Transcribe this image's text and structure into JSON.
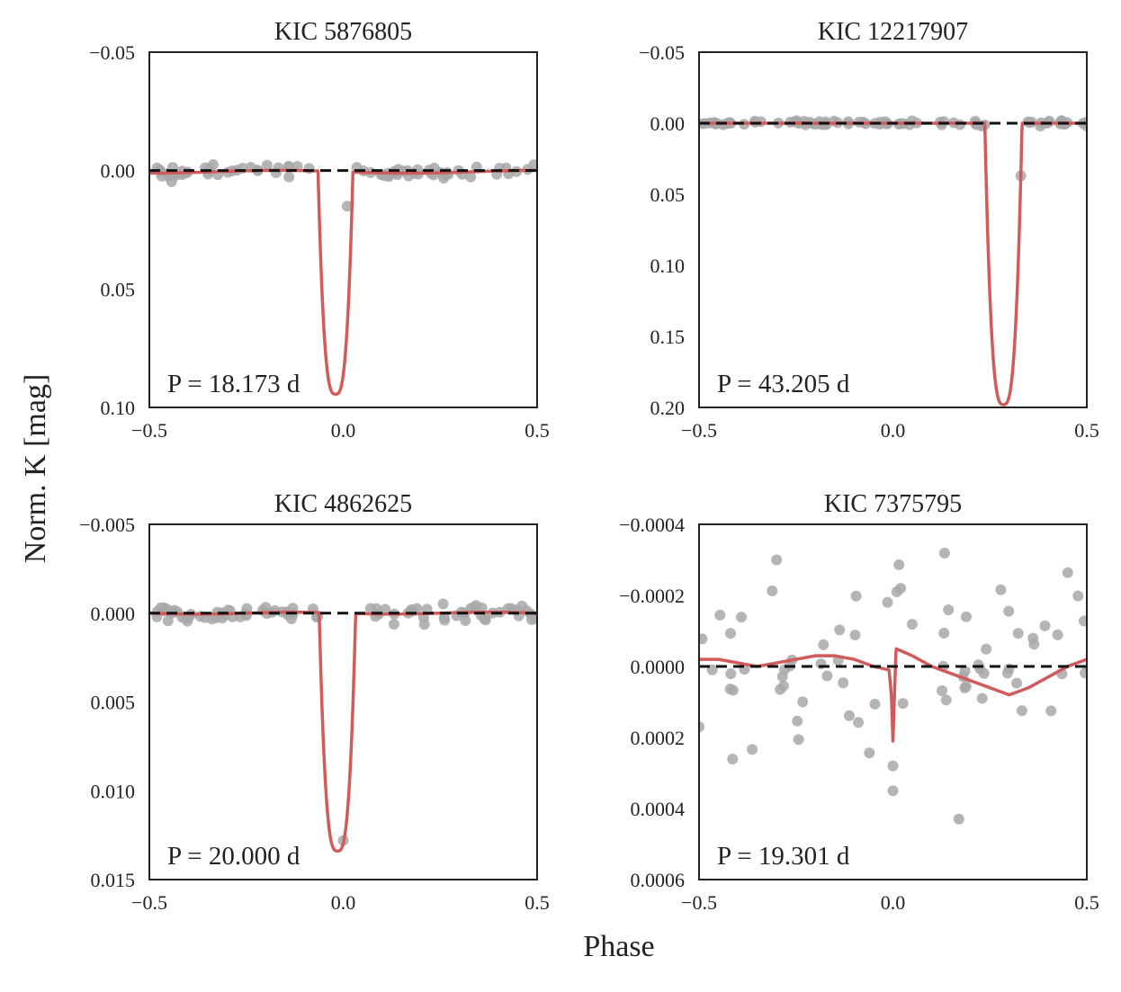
{
  "figure": {
    "xlabel": "Phase",
    "ylabel": "Norm. K [mag]"
  },
  "colors": {
    "points": "#a8a8a8",
    "model": "#d15b5b",
    "baseline": "#111111",
    "axes": "#222222",
    "text": "#222222"
  },
  "chart_data": [
    {
      "type": "scatter",
      "title": "KIC 5876805",
      "annotation": "P = 18.173 d",
      "xlim": [
        -0.5,
        0.5
      ],
      "ylim": [
        -0.05,
        0.1
      ],
      "y_inverted": true,
      "xticks": [
        -0.5,
        0.0,
        0.5
      ],
      "xtick_labels": [
        "−0.5",
        "0.0",
        "0.5"
      ],
      "yticks": [
        -0.05,
        0.0,
        0.05,
        0.1
      ],
      "ytick_labels": [
        "−0.05",
        "0.00",
        "0.05",
        "0.10"
      ],
      "baseline": 0,
      "model": {
        "transits": [
          {
            "center": -0.02,
            "depth": 0.094,
            "half_width": 0.045,
            "sharpness": 3
          }
        ],
        "offset": 0.0005,
        "wave_amp": 0.0006,
        "wave_freq": 1.5
      },
      "noise": 0.0012,
      "n_points": 80,
      "outliers": [
        [
          0.01,
          0.015
        ]
      ],
      "seed": 11
    },
    {
      "type": "scatter",
      "title": "KIC 12217907",
      "annotation": "P = 43.205 d",
      "xlim": [
        -0.5,
        0.5
      ],
      "ylim": [
        -0.05,
        0.2
      ],
      "y_inverted": true,
      "xticks": [
        -0.5,
        0.0,
        0.5
      ],
      "xtick_labels": [
        "−0.5",
        "0.0",
        "0.5"
      ],
      "yticks": [
        -0.05,
        0.0,
        0.05,
        0.1,
        0.15,
        0.2
      ],
      "ytick_labels": [
        "−0.05",
        "0.00",
        "0.05",
        "0.10",
        "0.15",
        "0.20"
      ],
      "baseline": 0,
      "model": {
        "transits": [
          {
            "center": 0.285,
            "depth": 0.198,
            "half_width": 0.048,
            "sharpness": 3
          }
        ],
        "offset": 0.0,
        "wave_amp": 0.0,
        "wave_freq": 1
      },
      "noise": 0.0008,
      "n_points": 85,
      "outliers": [
        [
          0.33,
          0.037
        ]
      ],
      "exclude_window": [
        0.24,
        0.33
      ],
      "seed": 23
    },
    {
      "type": "scatter",
      "title": "KIC 4862625",
      "annotation": "P = 20.000 d",
      "xlim": [
        -0.5,
        0.5
      ],
      "ylim": [
        -0.005,
        0.015
      ],
      "y_inverted": true,
      "xticks": [
        -0.5,
        0.0,
        0.5
      ],
      "xtick_labels": [
        "−0.5",
        "0.0",
        "0.5"
      ],
      "yticks": [
        -0.005,
        0.0,
        0.005,
        0.01,
        0.015
      ],
      "ytick_labels": [
        "−0.005",
        "0.000",
        "0.005",
        "0.010",
        "0.015"
      ],
      "baseline": 0,
      "model": {
        "transits": [
          {
            "center": -0.015,
            "depth": 0.0134,
            "half_width": 0.047,
            "sharpness": 3
          }
        ],
        "offset": 0.0,
        "wave_amp": 5e-05,
        "wave_freq": 2
      },
      "noise": 0.00025,
      "n_points": 90,
      "outliers": [
        [
          0.0,
          0.0128
        ]
      ],
      "exclude_window": [
        -0.06,
        0.03
      ],
      "seed": 37
    },
    {
      "type": "scatter",
      "title": "KIC 7375795",
      "annotation": "P = 19.301 d",
      "xlim": [
        -0.5,
        0.5
      ],
      "ylim": [
        -0.0004,
        0.0006
      ],
      "y_inverted": true,
      "xticks": [
        -0.5,
        0.0,
        0.5
      ],
      "xtick_labels": [
        "−0.5",
        "0.0",
        "0.5"
      ],
      "yticks": [
        -0.0004,
        -0.0002,
        0.0,
        0.0002,
        0.0004,
        0.0006
      ],
      "ytick_labels": [
        "−0.0004",
        "−0.0002",
        "0.0000",
        "0.0002",
        "0.0004",
        "0.0006"
      ],
      "baseline": 0,
      "model": {
        "custom_points": [
          [
            -0.5,
            -2e-05
          ],
          [
            -0.45,
            -2e-05
          ],
          [
            -0.4,
            -1e-05
          ],
          [
            -0.35,
            0.0
          ],
          [
            -0.3,
            -1e-05
          ],
          [
            -0.25,
            -2e-05
          ],
          [
            -0.2,
            -3e-05
          ],
          [
            -0.15,
            -3e-05
          ],
          [
            -0.1,
            -2e-05
          ],
          [
            -0.05,
            0.0
          ],
          [
            -0.01,
            1e-05
          ],
          [
            -0.004,
            8e-05
          ],
          [
            0.0,
            0.00021
          ],
          [
            0.004,
            8e-05
          ],
          [
            0.008,
            -5e-05
          ],
          [
            0.05,
            -3e-05
          ],
          [
            0.1,
            0.0
          ],
          [
            0.15,
            2e-05
          ],
          [
            0.2,
            4e-05
          ],
          [
            0.25,
            6e-05
          ],
          [
            0.3,
            8e-05
          ],
          [
            0.35,
            6e-05
          ],
          [
            0.4,
            3e-05
          ],
          [
            0.45,
            0.0
          ],
          [
            0.5,
            -2e-05
          ]
        ]
      },
      "noise": 0.00012,
      "n_points": 70,
      "outliers": [
        [
          0.0,
          0.00035
        ],
        [
          0.0,
          0.00028
        ],
        [
          0.17,
          0.00043
        ],
        [
          -0.3,
          -0.0003
        ],
        [
          0.02,
          -0.00022
        ],
        [
          0.01,
          -0.00021
        ],
        [
          -0.5,
          0.00017
        ]
      ],
      "seed": 53
    }
  ]
}
